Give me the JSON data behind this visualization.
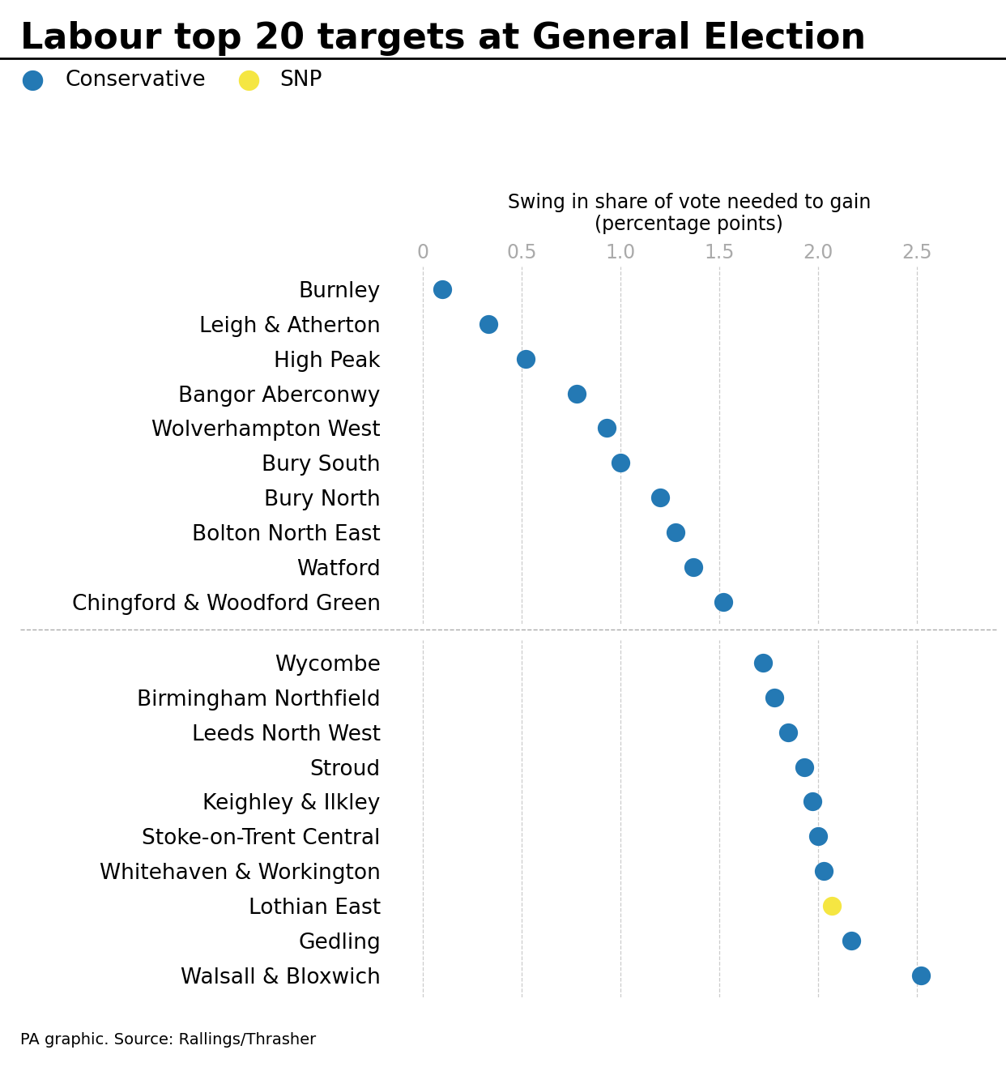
{
  "title": "Labour top 20 targets at General Election",
  "xlabel_line1": "Swing in share of vote needed to gain",
  "xlabel_line2": "(percentage points)",
  "source": "PA graphic. Source: Rallings/Thrasher",
  "constituencies": [
    "Burnley",
    "Leigh & Atherton",
    "High Peak",
    "Bangor Aberconwy",
    "Wolverhampton West",
    "Bury South",
    "Bury North",
    "Bolton North East",
    "Watford",
    "Chingford & Woodford Green",
    "Wycombe",
    "Birmingham Northfield",
    "Leeds North West",
    "Stroud",
    "Keighley & Ilkley",
    "Stoke-on-Trent Central",
    "Whitehaven & Workington",
    "Lothian East",
    "Gedling",
    "Walsall & Bloxwich"
  ],
  "values": [
    0.1,
    0.33,
    0.52,
    0.78,
    0.93,
    1.0,
    1.2,
    1.28,
    1.37,
    1.52,
    1.72,
    1.78,
    1.85,
    1.93,
    1.97,
    2.0,
    2.03,
    2.07,
    2.17,
    2.52
  ],
  "colors": [
    "#2479b4",
    "#2479b4",
    "#2479b4",
    "#2479b4",
    "#2479b4",
    "#2479b4",
    "#2479b4",
    "#2479b4",
    "#2479b4",
    "#2479b4",
    "#2479b4",
    "#2479b4",
    "#2479b4",
    "#2479b4",
    "#2479b4",
    "#2479b4",
    "#2479b4",
    "#f5e642",
    "#2479b4",
    "#2479b4"
  ],
  "divider_after": 10,
  "xlim": [
    -0.18,
    2.85
  ],
  "xticks": [
    0,
    0.5,
    1.0,
    1.5,
    2.0,
    2.5
  ],
  "xtick_labels": [
    "0",
    "0.5",
    "1.0",
    "1.5",
    "2.0",
    "2.5"
  ],
  "conservative_color": "#2479b4",
  "snp_color": "#f5e642",
  "dot_size": 280,
  "title_fontsize": 32,
  "label_fontsize": 19,
  "axis_fontsize": 17,
  "source_fontsize": 14,
  "legend_fontsize": 19,
  "xlabel_fontsize": 17
}
